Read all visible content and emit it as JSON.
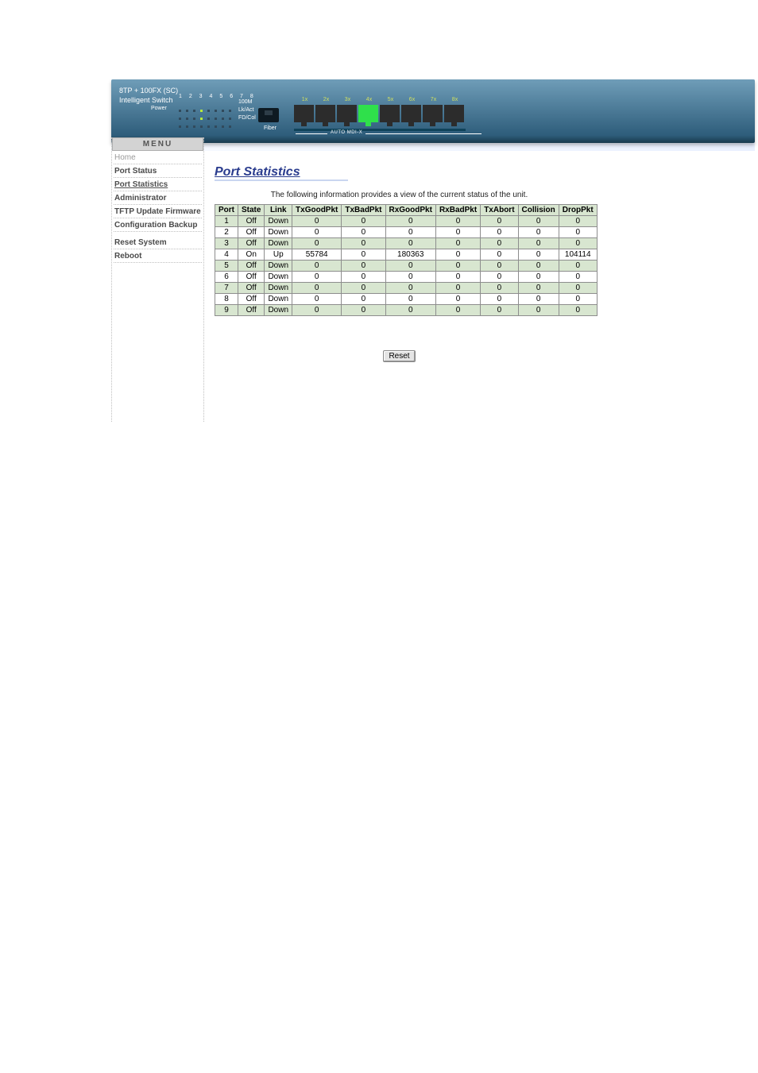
{
  "banner": {
    "title_line1": "8TP + 100FX (SC)",
    "title_line2": "Intelligent Switch",
    "power_label": "Power",
    "led_numbers": "1 2 3 4 5 6 7 8",
    "row_labels": [
      "100M",
      "Lk/Act",
      "FD/Col"
    ],
    "fiber_label": "Fiber",
    "auto_label": "AUTO MDI-X",
    "port_numbers": [
      "1x",
      "2x",
      "3x",
      "4x",
      "5x",
      "6x",
      "7x",
      "8x"
    ],
    "active_port_index": 3
  },
  "menu": {
    "heading": "MENU",
    "items": [
      {
        "label": "Home",
        "style": "light"
      },
      {
        "label": "Port Status",
        "style": "bold"
      },
      {
        "label": "Port Statistics",
        "style": "active"
      },
      {
        "label": "Administrator",
        "style": "bold"
      },
      {
        "label": "TFTP Update Firmware",
        "style": "bold"
      },
      {
        "label": "Configuration Backup",
        "style": "bold"
      },
      {
        "label": "Reset System",
        "style": "bold",
        "gap_before": true
      },
      {
        "label": "Reboot",
        "style": "bold"
      }
    ]
  },
  "content": {
    "title": "Port Statistics",
    "subtitle": "The following information provides a view of the current status of the unit.",
    "columns": [
      "Port",
      "State",
      "Link",
      "TxGoodPkt",
      "TxBadPkt",
      "RxGoodPkt",
      "RxBadPkt",
      "TxAbort",
      "Collision",
      "DropPkt"
    ],
    "rows": [
      [
        "1",
        "Off",
        "Down",
        "0",
        "0",
        "0",
        "0",
        "0",
        "0",
        "0"
      ],
      [
        "2",
        "Off",
        "Down",
        "0",
        "0",
        "0",
        "0",
        "0",
        "0",
        "0"
      ],
      [
        "3",
        "Off",
        "Down",
        "0",
        "0",
        "0",
        "0",
        "0",
        "0",
        "0"
      ],
      [
        "4",
        "On",
        "Up",
        "55784",
        "0",
        "180363",
        "0",
        "0",
        "0",
        "104114"
      ],
      [
        "5",
        "Off",
        "Down",
        "0",
        "0",
        "0",
        "0",
        "0",
        "0",
        "0"
      ],
      [
        "6",
        "Off",
        "Down",
        "0",
        "0",
        "0",
        "0",
        "0",
        "0",
        "0"
      ],
      [
        "7",
        "Off",
        "Down",
        "0",
        "0",
        "0",
        "0",
        "0",
        "0",
        "0"
      ],
      [
        "8",
        "Off",
        "Down",
        "0",
        "0",
        "0",
        "0",
        "0",
        "0",
        "0"
      ],
      [
        "9",
        "Off",
        "Down",
        "0",
        "0",
        "0",
        "0",
        "0",
        "0",
        "0"
      ]
    ],
    "reset_label": "Reset"
  },
  "style": {
    "title_color": "#2a3c8e",
    "row_alt_bg": "#d8e6d0",
    "table_border": "#8d8d8d",
    "port_on_color": "#2fe04b",
    "port_off_color": "#2c2c2c"
  }
}
